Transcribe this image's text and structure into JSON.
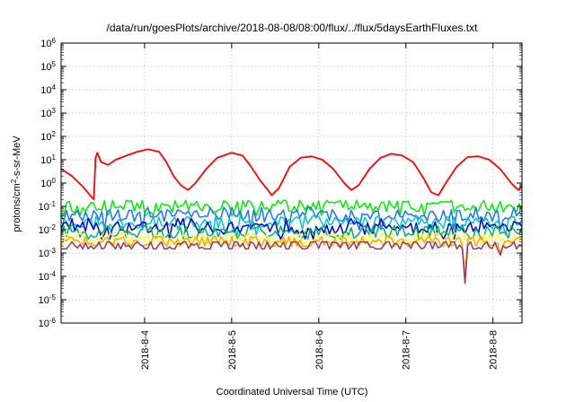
{
  "chart_data": {
    "type": "line",
    "title": "/data/run/goesPlots/archive/2018-08-08/08:00/flux/../flux/5daysEarthFluxes.txt",
    "xlabel": "Coordinated Universal Time (UTC)",
    "ylabel": "protons/cm²-s-sr-MeV",
    "ylabel_parts": {
      "base": "protons/cm",
      "sup": "2",
      "rest": "-s-sr-MeV"
    },
    "yscale": "log",
    "ylim_exponents": [
      -6,
      6
    ],
    "y_tick_labels": [
      {
        "base": "10",
        "exp": "6"
      },
      {
        "base": "10",
        "exp": "5"
      },
      {
        "base": "10",
        "exp": "4"
      },
      {
        "base": "10",
        "exp": "3"
      },
      {
        "base": "10",
        "exp": "2"
      },
      {
        "base": "10",
        "exp": "1"
      },
      {
        "base": "10",
        "exp": "0"
      },
      {
        "base": "10",
        "exp": "-1"
      },
      {
        "base": "10",
        "exp": "-2"
      },
      {
        "base": "10",
        "exp": "-3"
      },
      {
        "base": "10",
        "exp": "-4"
      },
      {
        "base": "10",
        "exp": "-5"
      },
      {
        "base": "10",
        "exp": "-6"
      }
    ],
    "xlim": [
      "2018-08-03T01:00",
      "2018-08-08T08:00"
    ],
    "x_ticks": [
      "2018-8-4",
      "2018-8-5",
      "2018-8-6",
      "2018-8-7",
      "2018-8-8"
    ],
    "grid": true,
    "series": [
      {
        "color": "#ff0000",
        "points": [
          [
            "2018-08-03T01:00",
            4
          ],
          [
            "2018-08-03T04:00",
            2
          ],
          [
            "2018-08-03T07:00",
            0.7
          ],
          [
            "2018-08-03T09:00",
            0.3
          ],
          [
            "2018-08-03T10:00",
            0.2
          ],
          [
            "2018-08-03T10:30",
            12
          ],
          [
            "2018-08-03T11:00",
            20
          ],
          [
            "2018-08-03T12:00",
            8
          ],
          [
            "2018-08-03T14:00",
            6
          ],
          [
            "2018-08-03T16:00",
            10
          ],
          [
            "2018-08-03T19:00",
            15
          ],
          [
            "2018-08-03T22:00",
            22
          ],
          [
            "2018-08-04T01:00",
            28
          ],
          [
            "2018-08-04T04:00",
            22
          ],
          [
            "2018-08-04T06:00",
            8
          ],
          [
            "2018-08-04T08:00",
            2
          ],
          [
            "2018-08-04T10:00",
            0.8
          ],
          [
            "2018-08-04T12:00",
            0.5
          ],
          [
            "2018-08-04T14:00",
            1
          ],
          [
            "2018-08-04T17:00",
            4
          ],
          [
            "2018-08-04T20:00",
            12
          ],
          [
            "2018-08-05T00:00",
            20
          ],
          [
            "2018-08-05T03:00",
            15
          ],
          [
            "2018-08-05T05:00",
            6
          ],
          [
            "2018-08-05T08:00",
            1.2
          ],
          [
            "2018-08-05T10:00",
            0.5
          ],
          [
            "2018-08-05T11:00",
            0.3
          ],
          [
            "2018-08-05T13:00",
            0.6
          ],
          [
            "2018-08-05T16:00",
            5
          ],
          [
            "2018-08-05T19:00",
            12
          ],
          [
            "2018-08-05T22:00",
            14
          ],
          [
            "2018-08-06T01:00",
            10
          ],
          [
            "2018-08-06T04:00",
            4
          ],
          [
            "2018-08-06T07:00",
            1
          ],
          [
            "2018-08-06T09:00",
            0.5
          ],
          [
            "2018-08-06T11:00",
            0.8
          ],
          [
            "2018-08-06T14:00",
            4
          ],
          [
            "2018-08-06T17:00",
            12
          ],
          [
            "2018-08-06T20:00",
            18
          ],
          [
            "2018-08-06T23:00",
            15
          ],
          [
            "2018-08-07T02:00",
            8
          ],
          [
            "2018-08-07T05:00",
            1.5
          ],
          [
            "2018-08-07T07:00",
            0.4
          ],
          [
            "2018-08-07T09:00",
            0.3
          ],
          [
            "2018-08-07T11:00",
            1
          ],
          [
            "2018-08-07T14:00",
            5
          ],
          [
            "2018-08-07T17:00",
            13
          ],
          [
            "2018-08-07T20:00",
            14
          ],
          [
            "2018-08-07T23:00",
            10
          ],
          [
            "2018-08-08T02:00",
            4
          ],
          [
            "2018-08-08T05:00",
            1
          ],
          [
            "2018-08-08T07:00",
            0.5
          ],
          [
            "2018-08-08T08:00",
            0.8
          ]
        ]
      },
      {
        "color": "#00ee00",
        "level": 0.1,
        "min": 0.04,
        "max": 0.18,
        "dips": []
      },
      {
        "color": "#1a73ff",
        "level": 0.04,
        "min": 0.01,
        "max": 0.09,
        "dips": []
      },
      {
        "color": "#00c8c8",
        "level": 0.02,
        "min": 0.006,
        "max": 0.04,
        "dips": []
      },
      {
        "color": "#0000cc",
        "level": 0.012,
        "min": 0.004,
        "max": 0.03,
        "dips": []
      },
      {
        "color": "#00b070",
        "level": 0.008,
        "min": 0.004,
        "max": 0.015,
        "dips": []
      },
      {
        "color": "#ffff33",
        "level": 0.004,
        "min": 0.0025,
        "max": 0.007,
        "dips": []
      },
      {
        "color": "#ffa500",
        "level": 0.003,
        "min": 0.002,
        "max": 0.005,
        "dips": [
          [
            "2018-08-07T16:00",
            0.0001
          ],
          [
            "2018-08-08T02:00",
            0.001
          ]
        ]
      },
      {
        "color": "#993366",
        "level": 0.0022,
        "min": 0.0015,
        "max": 0.003,
        "dips": [
          [
            "2018-08-07T16:00",
            5e-05
          ],
          [
            "2018-08-08T02:00",
            0.0008
          ]
        ]
      }
    ]
  }
}
